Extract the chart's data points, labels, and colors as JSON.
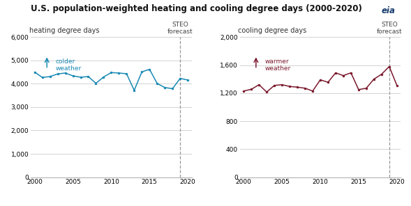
{
  "title": "U.S. population-weighted heating and cooling degree days (2000-2020)",
  "left_ylabel": "heating degree days",
  "right_ylabel": "cooling degree days",
  "steo_year": 2019,
  "left_color": "#1a8ab5",
  "right_color": "#7b1a2e",
  "hdd_years": [
    2000,
    2001,
    2002,
    2003,
    2004,
    2005,
    2006,
    2007,
    2008,
    2009,
    2010,
    2011,
    2012,
    2013,
    2014,
    2015,
    2016,
    2017,
    2018,
    2019,
    2020
  ],
  "hdd_vals": [
    4500,
    4270,
    4310,
    4420,
    4460,
    4340,
    4280,
    4310,
    4020,
    4290,
    4480,
    4460,
    4430,
    3720,
    4510,
    4620,
    4010,
    3840,
    3790,
    4230,
    4160
  ],
  "cdd_years": [
    2000,
    2001,
    2002,
    2003,
    2004,
    2005,
    2006,
    2007,
    2008,
    2009,
    2010,
    2011,
    2012,
    2013,
    2014,
    2015,
    2016,
    2017,
    2018,
    2019,
    2020
  ],
  "cdd_vals": [
    1230,
    1255,
    1320,
    1215,
    1310,
    1320,
    1295,
    1285,
    1270,
    1230,
    1390,
    1355,
    1490,
    1450,
    1490,
    1250,
    1270,
    1400,
    1470,
    1580,
    1310
  ],
  "left_ylim": [
    0,
    6000
  ],
  "right_ylim": [
    0,
    2000
  ],
  "left_yticks": [
    0,
    1000,
    2000,
    3000,
    4000,
    5000,
    6000
  ],
  "right_yticks": [
    0,
    400,
    800,
    1200,
    1600,
    2000
  ],
  "xticks": [
    2000,
    2005,
    2010,
    2015,
    2020
  ],
  "xlim": [
    1999.5,
    2020.5
  ],
  "background_color": "#ffffff",
  "grid_color": "#cccccc",
  "title_fontsize": 8.5,
  "label_fontsize": 7,
  "tick_fontsize": 6.5,
  "steo_fontsize": 6.5,
  "annotation_fontsize": 6.5
}
